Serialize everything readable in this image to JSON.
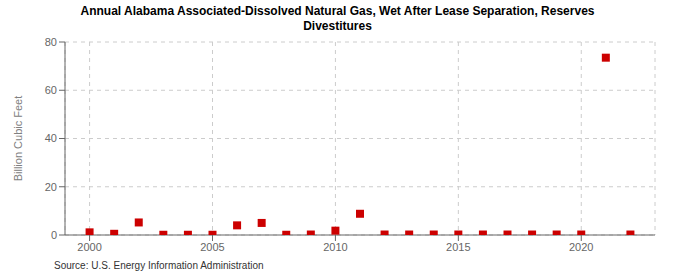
{
  "chart_data": {
    "type": "scatter",
    "title": "Annual Alabama Associated-Dissolved Natural Gas, Wet After Lease Separation, Reserves\nDivestitures",
    "ylabel": "Billion Cubic Feet",
    "annotations": [
      "Source: U.S. Energy Information Administration"
    ],
    "x": [
      2000,
      2001,
      2002,
      2003,
      2004,
      2005,
      2006,
      2007,
      2008,
      2009,
      2010,
      2011,
      2012,
      2013,
      2014,
      2015,
      2016,
      2017,
      2018,
      2019,
      2020,
      2021,
      2022
    ],
    "values": [
      1.1,
      0.5,
      5.2,
      0.1,
      0.1,
      0.1,
      4.0,
      5.0,
      0.1,
      0.2,
      1.8,
      8.8,
      0.2,
      0.2,
      0.2,
      0.2,
      0.2,
      0.2,
      0.2,
      0.2,
      0.2,
      73.5,
      0.2
    ],
    "color": "#cc0000",
    "marker": "square",
    "xlim": [
      1999,
      2023
    ],
    "xticks": [
      2000,
      2005,
      2010,
      2015,
      2020
    ],
    "ylim": [
      0,
      80
    ],
    "yticks": [
      0,
      20,
      40,
      60,
      80
    ],
    "grid": true
  }
}
